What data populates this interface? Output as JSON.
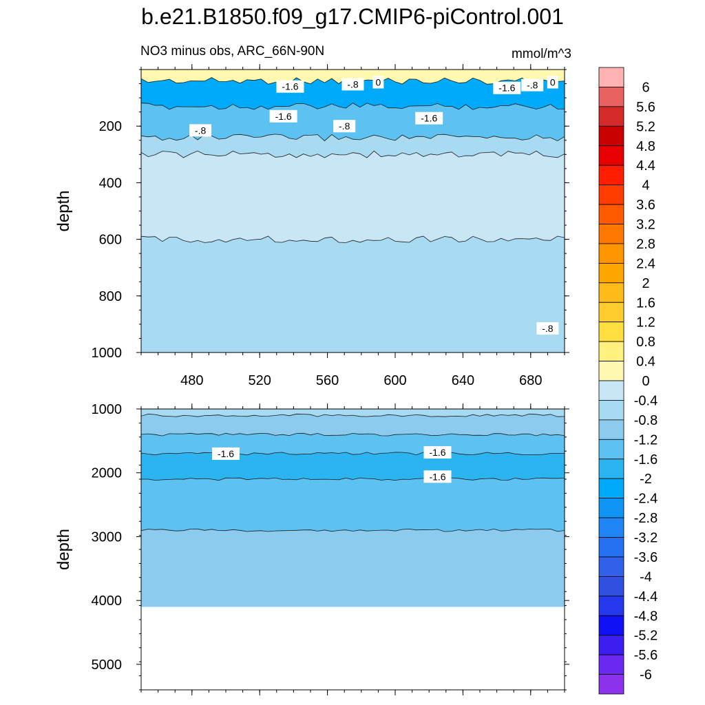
{
  "title": "b.e21.B1850.f09_g17.CMIP6-piControl.001",
  "subtitle_left": "NO3 minus obs, ARC_66N-90N",
  "units": "mmol/m^3",
  "chart_data": [
    {
      "type": "contour",
      "panel": "upper",
      "xlabel": "",
      "ylabel": "depth",
      "xlim": [
        450,
        700
      ],
      "ylim": [
        1000,
        0
      ],
      "xticks": [
        480,
        520,
        560,
        600,
        640,
        680
      ],
      "yticks": [
        200,
        400,
        600,
        800,
        1000
      ],
      "bands": [
        {
          "depth_top": 0,
          "depth_bottom": 40,
          "value": 0.2,
          "description": "thin positive near-surface layer"
        },
        {
          "depth_top": 40,
          "depth_bottom": 130,
          "value": -2.2,
          "description": "strongest negative anomaly"
        },
        {
          "depth_top": 130,
          "depth_bottom": 240,
          "value": -1.4
        },
        {
          "depth_top": 240,
          "depth_bottom": 300,
          "value": -0.6
        },
        {
          "depth_top": 300,
          "depth_bottom": 600,
          "value": -0.2,
          "description": "lightest region, thinning eastward"
        },
        {
          "depth_top": 600,
          "depth_bottom": 1000,
          "value": -0.6
        }
      ],
      "contour_labels": [
        {
          "text": "-1.6",
          "x": 538,
          "depth": 60
        },
        {
          "text": "-.8",
          "x": 575,
          "depth": 52
        },
        {
          "text": "0",
          "x": 590,
          "depth": 45
        },
        {
          "text": "-1.6",
          "x": 666,
          "depth": 65
        },
        {
          "text": "-.8",
          "x": 681,
          "depth": 55
        },
        {
          "text": "0",
          "x": 693,
          "depth": 45
        },
        {
          "text": "-1.6",
          "x": 534,
          "depth": 165
        },
        {
          "text": "-1.6",
          "x": 620,
          "depth": 172
        },
        {
          "text": "-.8",
          "x": 485,
          "depth": 215
        },
        {
          "text": "-.8",
          "x": 570,
          "depth": 200
        },
        {
          "text": "-.8",
          "x": 690,
          "depth": 915
        }
      ]
    },
    {
      "type": "contour",
      "panel": "lower",
      "xlabel": "",
      "ylabel": "depth",
      "xlim": [
        450,
        700
      ],
      "ylim": [
        5400,
        1000
      ],
      "yticks": [
        1000,
        2000,
        3000,
        4000,
        5000
      ],
      "bands": [
        {
          "depth_top": 1000,
          "depth_bottom": 1100,
          "value": -0.6
        },
        {
          "depth_top": 1100,
          "depth_bottom": 1400,
          "value": -1.0
        },
        {
          "depth_top": 1400,
          "depth_bottom": 1700,
          "value": -1.4
        },
        {
          "depth_top": 1700,
          "depth_bottom": 2100,
          "value": -1.8
        },
        {
          "depth_top": 2100,
          "depth_bottom": 2900,
          "value": -1.4
        },
        {
          "depth_top": 2900,
          "depth_bottom": 4100,
          "value": -1.0
        }
      ],
      "contour_labels": [
        {
          "text": "-1.6",
          "x": 500,
          "depth": 1700
        },
        {
          "text": "-1.6",
          "x": 625,
          "depth": 1680
        },
        {
          "text": "-1.6",
          "x": 625,
          "depth": 2060
        }
      ]
    }
  ],
  "colorbar": {
    "labels": [
      "6",
      "5.6",
      "5.2",
      "4.8",
      "4.4",
      "4",
      "3.6",
      "3.2",
      "2.8",
      "2.4",
      "2",
      "1.6",
      "1.2",
      "0.8",
      "0.4",
      "0",
      "-0.4",
      "-0.8",
      "-1.2",
      "-1.6",
      "-2",
      "-2.4",
      "-2.8",
      "-3.2",
      "-3.6",
      "-4",
      "-4.4",
      "-4.8",
      "-5.2",
      "-5.6",
      "-6"
    ],
    "colors": [
      "#FFB3B3",
      "#E86060",
      "#D42A2A",
      "#C80000",
      "#E60000",
      "#FF1E00",
      "#FF3C00",
      "#FF5A00",
      "#FF7800",
      "#FF9600",
      "#FFA500",
      "#FFBB1A",
      "#FFCE2E",
      "#FFE040",
      "#FFF080",
      "#FFF8B0",
      "#C8E6F5",
      "#A8DAF2",
      "#8CCBEE",
      "#5DC2F2",
      "#2CB4F0",
      "#00AAFA",
      "#1195F5",
      "#1F85F5",
      "#2470F0",
      "#3360E8",
      "#3050E0",
      "#2638EC",
      "#1010F5",
      "#3C1EF0",
      "#6A28F0",
      "#8C32EC"
    ]
  }
}
